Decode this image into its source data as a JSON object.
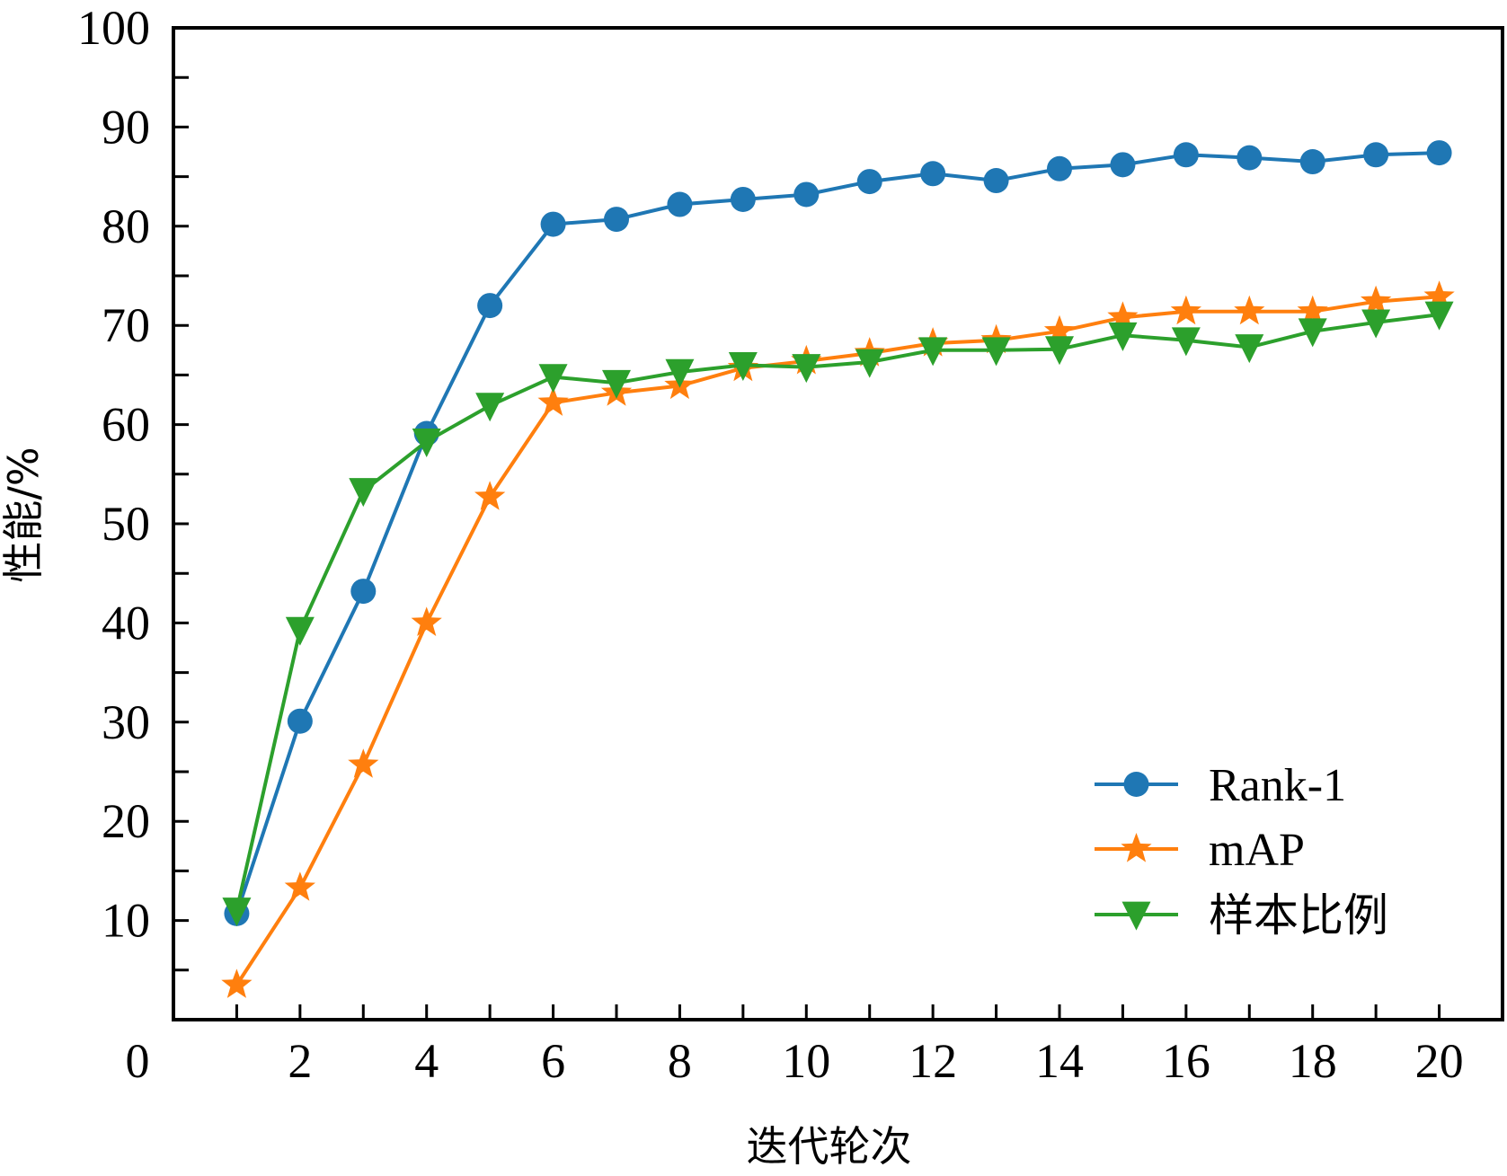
{
  "chart_data": {
    "type": "line",
    "title": "",
    "xlabel": "迭代轮次",
    "ylabel": "性能/%",
    "xlim": [
      0,
      21
    ],
    "ylim": [
      0,
      100
    ],
    "grid": false,
    "legend_position": "lower-right",
    "x": [
      1,
      2,
      3,
      4,
      5,
      6,
      7,
      8,
      9,
      10,
      11,
      12,
      13,
      14,
      15,
      16,
      17,
      18,
      19,
      20
    ],
    "x_tick_labels": [
      "0",
      "2",
      "4",
      "6",
      "8",
      "10",
      "12",
      "14",
      "16",
      "18",
      "20"
    ],
    "x_tick_values": [
      0,
      2,
      4,
      6,
      8,
      10,
      12,
      14,
      16,
      18,
      20
    ],
    "x_minor_ticks": [
      1,
      2,
      3,
      4,
      5,
      6,
      7,
      8,
      9,
      10,
      11,
      12,
      13,
      14,
      15,
      16,
      17,
      18,
      19,
      20
    ],
    "y_tick_labels": [
      "10",
      "20",
      "30",
      "40",
      "50",
      "60",
      "70",
      "80",
      "90",
      "100"
    ],
    "y_tick_values": [
      10,
      20,
      30,
      40,
      50,
      60,
      70,
      80,
      90,
      100
    ],
    "y_minor_ticks": [
      5,
      15,
      25,
      35,
      45,
      55,
      65,
      75,
      85,
      95
    ],
    "series": [
      {
        "name": "Rank-1",
        "color": "#1f77b4",
        "marker": "circle",
        "values": [
          10.7,
          30.1,
          43.2,
          59.1,
          72.0,
          80.2,
          80.7,
          82.2,
          82.7,
          83.2,
          84.5,
          85.3,
          84.6,
          85.8,
          86.2,
          87.2,
          86.9,
          86.5,
          87.2,
          87.4
        ]
      },
      {
        "name": "mAP",
        "color": "#ff7f0e",
        "marker": "star",
        "values": [
          3.5,
          13.3,
          25.7,
          40.0,
          52.7,
          62.2,
          63.2,
          63.9,
          65.7,
          66.4,
          67.2,
          68.2,
          68.5,
          69.4,
          70.8,
          71.4,
          71.4,
          71.4,
          72.4,
          72.9
        ]
      },
      {
        "name": "样本比例",
        "color": "#2ca02c",
        "marker": "triangle-down",
        "values": [
          11.0,
          39.3,
          53.3,
          58.3,
          61.9,
          64.8,
          64.2,
          65.3,
          66.0,
          65.8,
          66.3,
          67.5,
          67.5,
          67.6,
          69.0,
          68.5,
          67.8,
          69.4,
          70.3,
          71.1
        ]
      }
    ]
  }
}
